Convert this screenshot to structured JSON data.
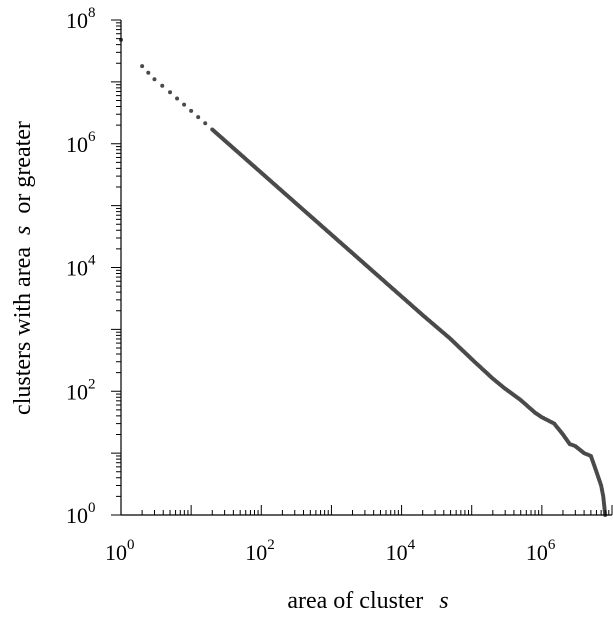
{
  "chart_data": {
    "type": "scatter",
    "title": "",
    "xlabel": {
      "text": "area of cluster",
      "variable": "s"
    },
    "ylabel": {
      "prefix": "clusters with area",
      "variable": "s",
      "suffix": "or greater"
    },
    "x_scale": "log",
    "y_scale": "log",
    "xlim": [
      1,
      10000000
    ],
    "ylim": [
      1,
      100000000
    ],
    "x_ticks": [
      {
        "base": "10",
        "exp": "0",
        "value": 1
      },
      {
        "base": "10",
        "exp": "2",
        "value": 100
      },
      {
        "base": "10",
        "exp": "4",
        "value": 10000
      },
      {
        "base": "10",
        "exp": "6",
        "value": 1000000
      }
    ],
    "y_ticks": [
      {
        "base": "10",
        "exp": "0",
        "value": 1
      },
      {
        "base": "10",
        "exp": "2",
        "value": 100
      },
      {
        "base": "10",
        "exp": "4",
        "value": 10000
      },
      {
        "base": "10",
        "exp": "6",
        "value": 1000000
      },
      {
        "base": "10",
        "exp": "8",
        "value": 100000000
      }
    ],
    "grid": false,
    "point_color": "#4a4a4a",
    "series": [
      {
        "points": [
          [
            1,
            48000000
          ],
          [
            2,
            18000000
          ],
          [
            3,
            11000000
          ],
          [
            5,
            6800000
          ],
          [
            10,
            3400000
          ],
          [
            20,
            1700000
          ],
          [
            50,
            680000
          ],
          [
            100,
            340000
          ],
          [
            200,
            170000
          ],
          [
            500,
            68000
          ],
          [
            1000,
            34000
          ],
          [
            2000,
            17000
          ],
          [
            5000,
            6800
          ],
          [
            10000,
            3400
          ],
          [
            20000,
            1700
          ],
          [
            50000,
            700
          ],
          [
            100000,
            330
          ],
          [
            200000,
            160
          ],
          [
            300000,
            110
          ],
          [
            500000,
            72
          ],
          [
            800000,
            45
          ],
          [
            1000000,
            38
          ],
          [
            1500000,
            30
          ],
          [
            2000000,
            20
          ],
          [
            2500000,
            14
          ],
          [
            3000000,
            13
          ],
          [
            4000000,
            10
          ],
          [
            5000000,
            9
          ],
          [
            6000000,
            5
          ],
          [
            7000000,
            3
          ],
          [
            7500000,
            2
          ],
          [
            8000000,
            1
          ]
        ]
      }
    ]
  }
}
